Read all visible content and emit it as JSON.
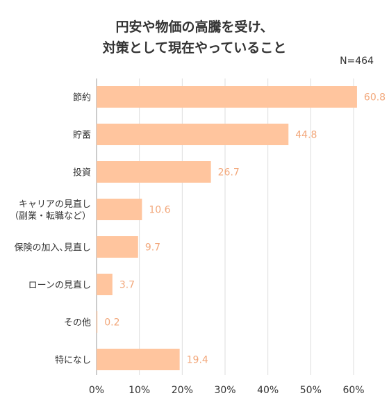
{
  "title_lines": [
    "円安や物価の高騰を受け、",
    "対策として現在やっていること"
  ],
  "sample_size": "N=464",
  "colors": {
    "bar": "#ffc59e",
    "value_label": "#f2a77a",
    "grid": "#dddddd",
    "axis": "#999999"
  },
  "chart_data": {
    "type": "bar",
    "orientation": "horizontal",
    "title": "円安や物価の高騰を受け、対策として現在やっていること",
    "categories": [
      [
        "節約"
      ],
      [
        "貯蓄"
      ],
      [
        "投資"
      ],
      [
        "キャリアの見直し",
        "（副業・転職など）"
      ],
      [
        "保険の加入､見直し"
      ],
      [
        "ローンの見直し"
      ],
      [
        "その他"
      ],
      [
        "特になし"
      ]
    ],
    "values": [
      60.8,
      44.8,
      26.7,
      10.6,
      9.7,
      3.7,
      0.2,
      19.4
    ],
    "value_labels": [
      "60.8",
      "44.8",
      "26.7",
      "10.6",
      "9.7",
      "3.7",
      "0.2",
      "19.4"
    ],
    "xlim": [
      0,
      60
    ],
    "xticks": [
      0,
      10,
      20,
      30,
      40,
      50,
      60
    ],
    "xtick_labels": [
      "0%",
      "10%",
      "20%",
      "30%",
      "40%",
      "50%",
      "60%"
    ],
    "grid": true,
    "legend": "none"
  }
}
